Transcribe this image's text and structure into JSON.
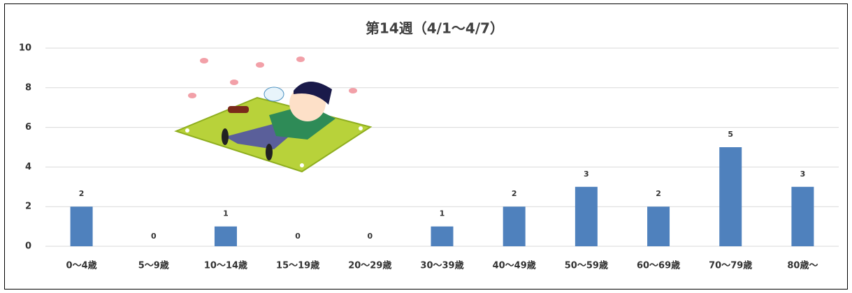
{
  "chart_data": {
    "type": "bar",
    "title": "第14週（4/1～4/7）",
    "categories": [
      "0～4歳",
      "5～9歳",
      "10～14歳",
      "15～19歳",
      "20～29歳",
      "30～39歳",
      "40～49歳",
      "50～59歳",
      "60～69歳",
      "70～79歳",
      "80歳～"
    ],
    "values": [
      2,
      0,
      1,
      0,
      0,
      1,
      2,
      3,
      2,
      5,
      3
    ],
    "color": "#4f81bd",
    "ylim": [
      0,
      10
    ],
    "yticks": [
      0,
      2,
      4,
      6,
      8,
      10
    ],
    "grid": true
  }
}
